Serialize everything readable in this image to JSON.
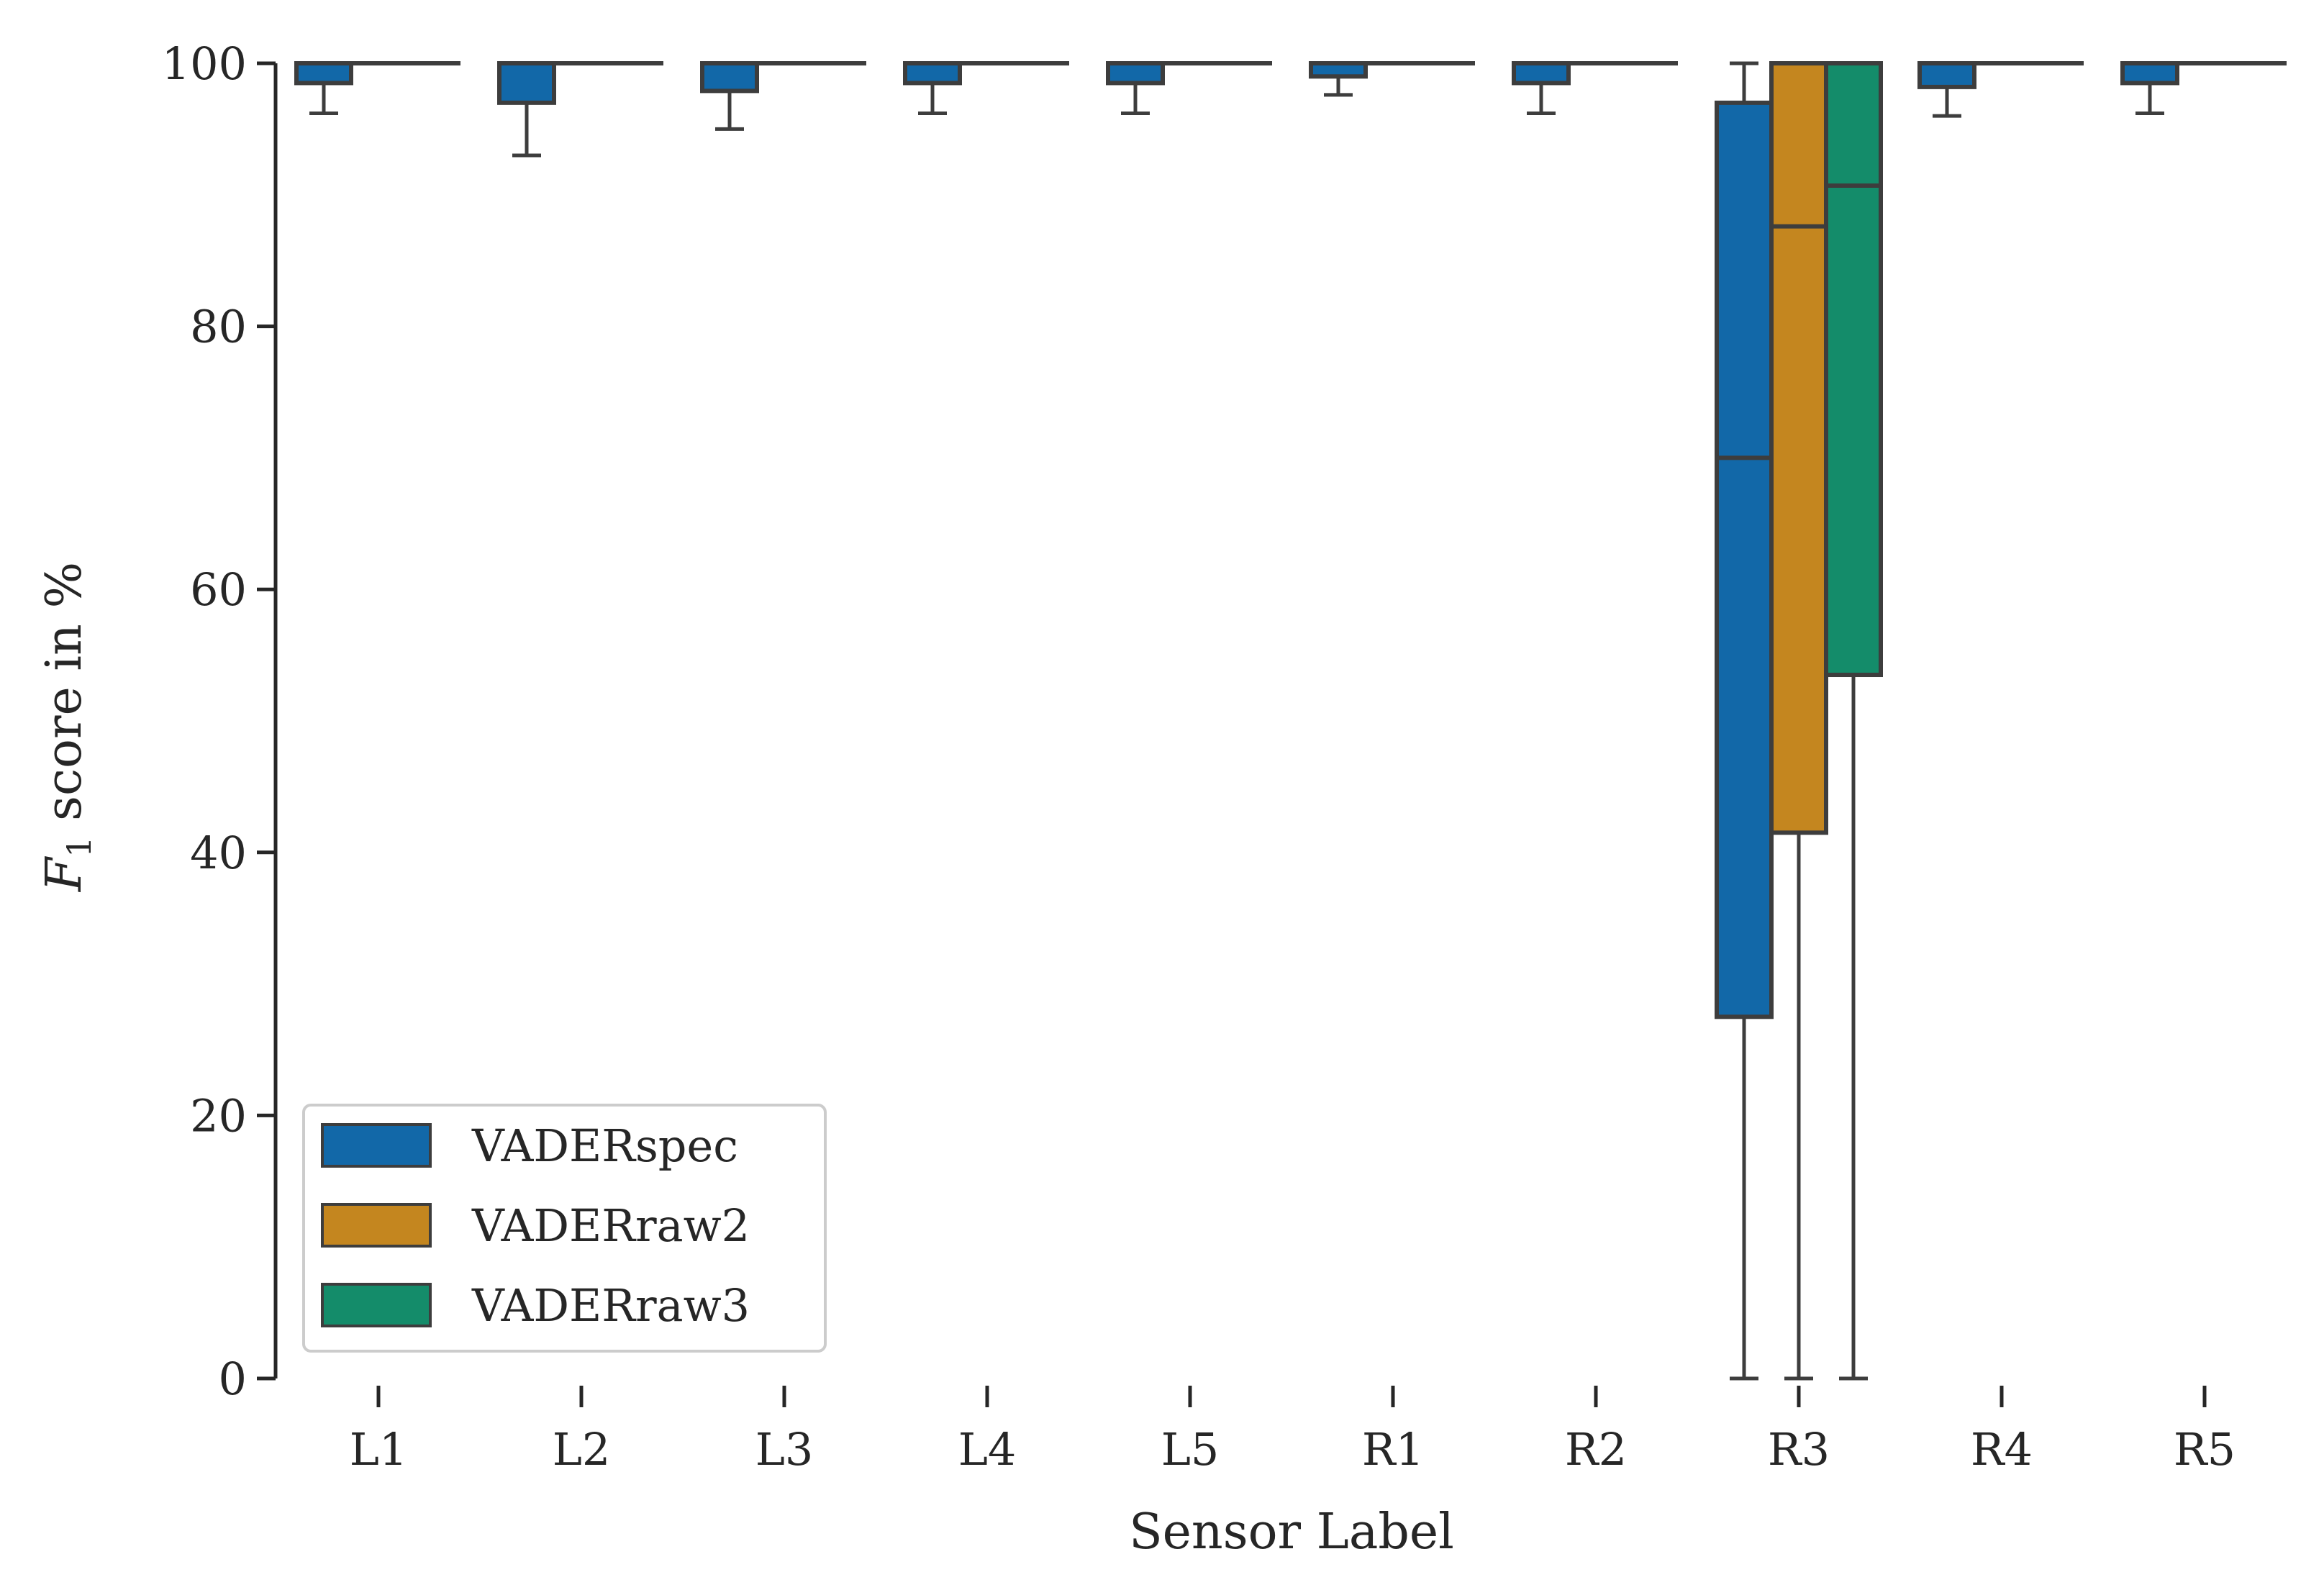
{
  "chart_data": {
    "type": "box",
    "title": "",
    "xlabel": "Sensor Label",
    "ylabel_main": "F",
    "ylabel_sub": "1",
    "ylabel_rest": " score in %",
    "ylim": [
      0,
      100
    ],
    "yticks": [
      0,
      20,
      40,
      60,
      80,
      100
    ],
    "grid": false,
    "legend_position": "lower-left",
    "categories": [
      "L1",
      "L2",
      "L3",
      "L4",
      "L5",
      "R1",
      "R2",
      "R3",
      "R4",
      "R5"
    ],
    "series": [
      {
        "name": "VADERspec",
        "color": "#1268a8",
        "boxes": [
          {
            "min": 96.2,
            "q1": 98.5,
            "median": 100,
            "q3": 100,
            "max": 100
          },
          {
            "min": 93.0,
            "q1": 97.0,
            "median": 100,
            "q3": 100,
            "max": 100
          },
          {
            "min": 95.0,
            "q1": 97.9,
            "median": 100,
            "q3": 100,
            "max": 100
          },
          {
            "min": 96.2,
            "q1": 98.5,
            "median": 100,
            "q3": 100,
            "max": 100
          },
          {
            "min": 96.2,
            "q1": 98.5,
            "median": 100,
            "q3": 100,
            "max": 100
          },
          {
            "min": 97.6,
            "q1": 99.0,
            "median": 100,
            "q3": 100,
            "max": 100
          },
          {
            "min": 96.2,
            "q1": 98.5,
            "median": 100,
            "q3": 100,
            "max": 100
          },
          {
            "min": 0,
            "q1": 27.5,
            "median": 70.0,
            "q3": 97.0,
            "max": 100
          },
          {
            "min": 96.0,
            "q1": 98.2,
            "median": 100,
            "q3": 100,
            "max": 100
          },
          {
            "min": 96.2,
            "q1": 98.5,
            "median": 100,
            "q3": 100,
            "max": 100
          }
        ]
      },
      {
        "name": "VADERraw2",
        "color": "#c4861f",
        "boxes": [
          {
            "min": 100,
            "q1": 100,
            "median": 100,
            "q3": 100,
            "max": 100
          },
          {
            "min": 100,
            "q1": 100,
            "median": 100,
            "q3": 100,
            "max": 100
          },
          {
            "min": 100,
            "q1": 100,
            "median": 100,
            "q3": 100,
            "max": 100
          },
          {
            "min": 100,
            "q1": 100,
            "median": 100,
            "q3": 100,
            "max": 100
          },
          {
            "min": 100,
            "q1": 100,
            "median": 100,
            "q3": 100,
            "max": 100
          },
          {
            "min": 100,
            "q1": 100,
            "median": 100,
            "q3": 100,
            "max": 100
          },
          {
            "min": 100,
            "q1": 100,
            "median": 100,
            "q3": 100,
            "max": 100
          },
          {
            "min": 0,
            "q1": 41.5,
            "median": 87.6,
            "q3": 100,
            "max": 100
          },
          {
            "min": 100,
            "q1": 100,
            "median": 100,
            "q3": 100,
            "max": 100
          },
          {
            "min": 100,
            "q1": 100,
            "median": 100,
            "q3": 100,
            "max": 100
          }
        ]
      },
      {
        "name": "VADERraw3",
        "color": "#148c6a",
        "boxes": [
          {
            "min": 100,
            "q1": 100,
            "median": 100,
            "q3": 100,
            "max": 100
          },
          {
            "min": 100,
            "q1": 100,
            "median": 100,
            "q3": 100,
            "max": 100
          },
          {
            "min": 100,
            "q1": 100,
            "median": 100,
            "q3": 100,
            "max": 100
          },
          {
            "min": 100,
            "q1": 100,
            "median": 100,
            "q3": 100,
            "max": 100
          },
          {
            "min": 100,
            "q1": 100,
            "median": 100,
            "q3": 100,
            "max": 100
          },
          {
            "min": 100,
            "q1": 100,
            "median": 100,
            "q3": 100,
            "max": 100
          },
          {
            "min": 100,
            "q1": 100,
            "median": 100,
            "q3": 100,
            "max": 100
          },
          {
            "min": 0,
            "q1": 53.5,
            "median": 90.7,
            "q3": 100,
            "max": 100
          },
          {
            "min": 100,
            "q1": 100,
            "median": 100,
            "q3": 100,
            "max": 100
          },
          {
            "min": 100,
            "q1": 100,
            "median": 100,
            "q3": 100,
            "max": 100
          }
        ]
      }
    ]
  }
}
